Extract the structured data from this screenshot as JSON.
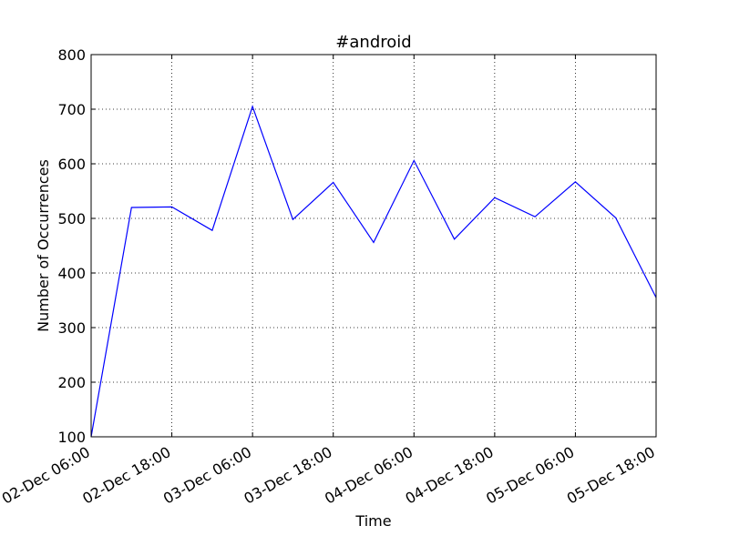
{
  "chart_data": {
    "type": "line",
    "title": "#android",
    "xlabel": "Time",
    "ylabel": "Number of Occurrences",
    "ylim": [
      100,
      800
    ],
    "yticks": [
      100,
      200,
      300,
      400,
      500,
      600,
      700,
      800
    ],
    "xlim": [
      "2015-12-02T06:00",
      "2015-12-05T18:00"
    ],
    "xticks": [
      {
        "value": "2015-12-02T06:00",
        "label": "02-Dec 06:00"
      },
      {
        "value": "2015-12-02T18:00",
        "label": "02-Dec 18:00"
      },
      {
        "value": "2015-12-03T06:00",
        "label": "03-Dec 06:00"
      },
      {
        "value": "2015-12-03T18:00",
        "label": "03-Dec 18:00"
      },
      {
        "value": "2015-12-04T06:00",
        "label": "04-Dec 06:00"
      },
      {
        "value": "2015-12-04T18:00",
        "label": "04-Dec 18:00"
      },
      {
        "value": "2015-12-05T06:00",
        "label": "05-Dec 06:00"
      },
      {
        "value": "2015-12-05T18:00",
        "label": "05-Dec 18:00"
      }
    ],
    "grid": true,
    "series": [
      {
        "color": "#0000ff",
        "x": [
          "2015-12-02T06:00",
          "2015-12-02T12:00",
          "2015-12-02T18:00",
          "2015-12-03T00:00",
          "2015-12-03T06:00",
          "2015-12-03T12:00",
          "2015-12-03T18:00",
          "2015-12-04T00:00",
          "2015-12-04T06:00",
          "2015-12-04T12:00",
          "2015-12-04T18:00",
          "2015-12-05T00:00",
          "2015-12-05T06:00",
          "2015-12-05T12:00",
          "2015-12-05T18:00"
        ],
        "y": [
          100,
          520,
          521,
          478,
          705,
          498,
          566,
          456,
          606,
          462,
          538,
          503,
          567,
          501,
          355
        ]
      }
    ]
  }
}
